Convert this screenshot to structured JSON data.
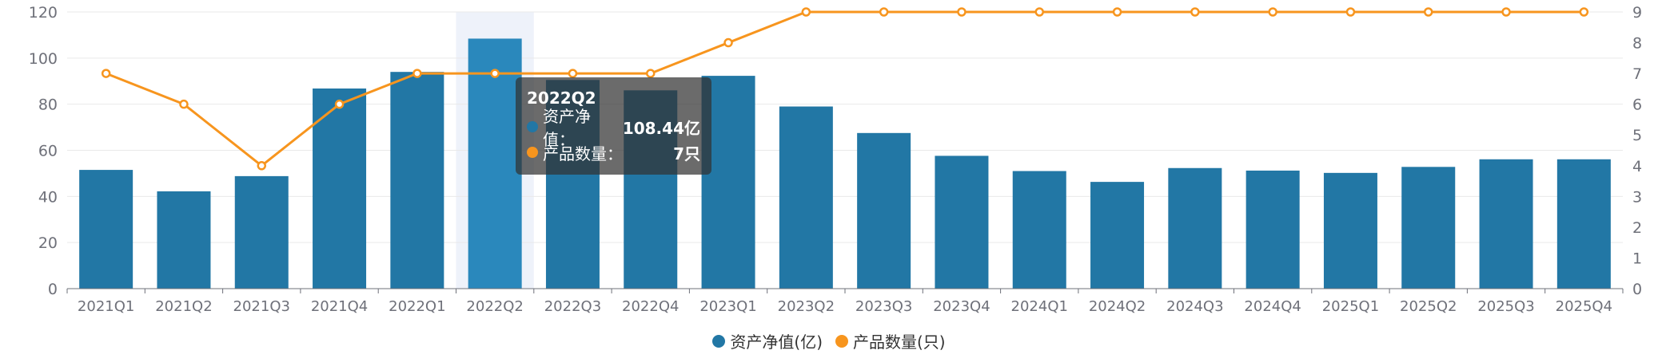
{
  "chart_data": {
    "type": "bar",
    "categories": [
      "2021Q1",
      "2021Q2",
      "2021Q3",
      "2021Q4",
      "2022Q1",
      "2022Q2",
      "2022Q3",
      "2022Q4",
      "2023Q1",
      "2023Q2",
      "2023Q3",
      "2023Q4",
      "2024Q1",
      "2024Q2",
      "2024Q3",
      "2024Q4",
      "2025Q1",
      "2025Q2",
      "2025Q3",
      "2025Q4"
    ],
    "series": [
      {
        "name": "资产净值(亿)",
        "type": "bar",
        "axis": "left",
        "color": "#2277a5",
        "values": [
          51.5,
          42.2,
          48.8,
          86.8,
          94.0,
          108.44,
          90.5,
          86.0,
          92.3,
          79.0,
          67.5,
          57.6,
          51.0,
          46.3,
          52.3,
          51.2,
          50.2,
          52.8,
          56.1,
          56.1
        ]
      },
      {
        "name": "产品数量(只)",
        "type": "line",
        "axis": "right",
        "color": "#f7951e",
        "values": [
          7,
          6,
          4,
          6,
          7,
          7,
          7,
          7,
          8,
          9,
          9,
          9,
          9,
          9,
          9,
          9,
          9,
          9,
          9,
          9
        ]
      }
    ],
    "y_left": {
      "min": 0,
      "max": 120,
      "ticks": [
        "0",
        "20",
        "40",
        "60",
        "80",
        "100",
        "120"
      ]
    },
    "y_right": {
      "min": 0,
      "max": 9,
      "ticks": [
        "0",
        "1",
        "2",
        "3",
        "4",
        "5",
        "6",
        "7",
        "8",
        "9"
      ]
    },
    "highlight_index": 5,
    "highlight_color": "#2a88bc",
    "legend_position": "bottom-center",
    "grid": true,
    "tooltip": {
      "title": "2022Q2",
      "rows": [
        {
          "label": "资产净值：",
          "value": "108.44亿",
          "color": "#2277a5"
        },
        {
          "label": "产品数量：",
          "value": "7只",
          "color": "#f7951e"
        }
      ]
    }
  }
}
